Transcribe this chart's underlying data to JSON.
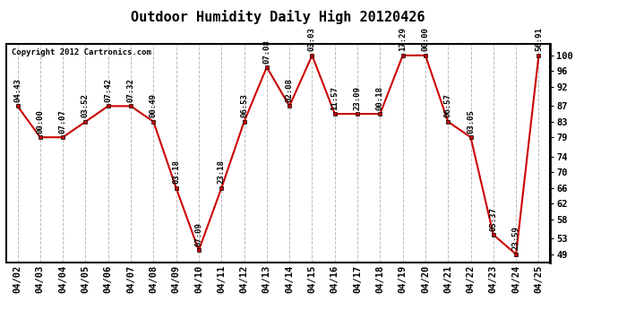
{
  "title": "Outdoor Humidity Daily High 20120426",
  "copyright": "Copyright 2012 Cartronics.com",
  "background_color": "#ffffff",
  "plot_bg_color": "#ffffff",
  "grid_color": "#bbbbbb",
  "line_color": "#cc0000",
  "marker_color": "#cc0000",
  "marker_edge_color": "#000000",
  "text_color": "#000000",
  "categories": [
    "04/02",
    "04/03",
    "04/04",
    "04/05",
    "04/06",
    "04/07",
    "04/08",
    "04/09",
    "04/10",
    "04/11",
    "04/12",
    "04/13",
    "04/14",
    "04/15",
    "04/16",
    "04/17",
    "04/18",
    "04/19",
    "04/20",
    "04/21",
    "04/22",
    "04/23",
    "04/24",
    "04/25"
  ],
  "values": [
    87,
    79,
    79,
    83,
    87,
    87,
    83,
    66,
    50,
    66,
    83,
    97,
    87,
    100,
    85,
    85,
    85,
    100,
    100,
    83,
    79,
    54,
    49,
    100
  ],
  "time_labels": [
    "04:43",
    "00:00",
    "07:07",
    "03:52",
    "07:42",
    "07:32",
    "00:49",
    "03:18",
    "07:09",
    "23:18",
    "06:53",
    "07:08",
    "02:08",
    "03:03",
    "11:57",
    "23:09",
    "00:18",
    "17:29",
    "00:00",
    "06:57",
    "03:05",
    "05:37",
    "23:59",
    "56:91"
  ],
  "ylim_min": 47,
  "ylim_max": 103,
  "yticks": [
    49,
    53,
    58,
    62,
    66,
    70,
    74,
    79,
    83,
    87,
    92,
    96,
    100
  ],
  "title_fontsize": 11,
  "label_fontsize": 6.5,
  "tick_fontsize": 7.5,
  "copyright_fontsize": 6.5
}
